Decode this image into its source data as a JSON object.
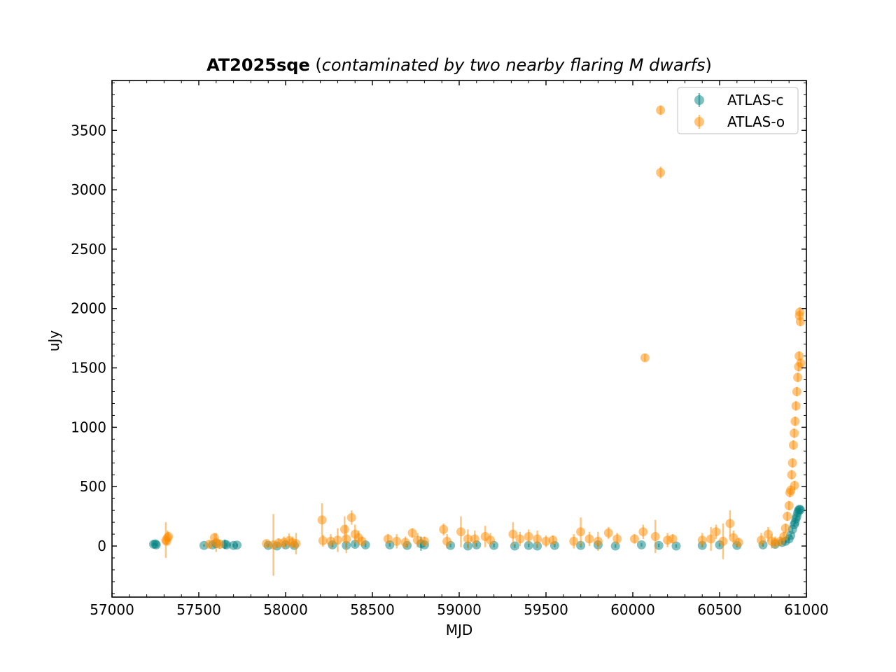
{
  "chart_data": {
    "type": "scatter",
    "title": "AT2025sqe",
    "subtitle": "contaminated by two nearby flaring M dwarfs",
    "xlabel": "MJD",
    "ylabel": "uJy",
    "xlim": [
      57000,
      61000
    ],
    "ylim": [
      -430,
      3920
    ],
    "xticks": [
      57000,
      57500,
      58000,
      58500,
      59000,
      59500,
      60000,
      60500,
      61000
    ],
    "yticks": [
      0,
      500,
      1000,
      1500,
      2000,
      2500,
      3000,
      3500
    ],
    "grid": false,
    "legend_position": "top-right",
    "series": [
      {
        "name": "ATLAS-c",
        "color": "#008080",
        "marker": "circle",
        "points": [
          [
            57240,
            15,
            10
          ],
          [
            57250,
            18,
            10
          ],
          [
            57255,
            10,
            10
          ],
          [
            57530,
            5,
            10
          ],
          [
            57580,
            10,
            12
          ],
          [
            57600,
            20,
            12
          ],
          [
            57650,
            15,
            40
          ],
          [
            57660,
            10,
            15
          ],
          [
            57700,
            5,
            12
          ],
          [
            57720,
            8,
            12
          ],
          [
            57900,
            5,
            15
          ],
          [
            57950,
            0,
            15
          ],
          [
            58000,
            10,
            15
          ],
          [
            58050,
            5,
            15
          ],
          [
            58270,
            10,
            20
          ],
          [
            58350,
            5,
            20
          ],
          [
            58400,
            15,
            20
          ],
          [
            58460,
            10,
            20
          ],
          [
            58600,
            10,
            15
          ],
          [
            58700,
            5,
            15
          ],
          [
            58780,
            20,
            60
          ],
          [
            58800,
            10,
            15
          ],
          [
            58950,
            5,
            15
          ],
          [
            59050,
            0,
            15
          ],
          [
            59100,
            10,
            15
          ],
          [
            59200,
            5,
            15
          ],
          [
            59320,
            0,
            15
          ],
          [
            59400,
            5,
            15
          ],
          [
            59450,
            0,
            15
          ],
          [
            59550,
            5,
            15
          ],
          [
            59700,
            5,
            15
          ],
          [
            59800,
            10,
            15
          ],
          [
            59900,
            0,
            15
          ],
          [
            60050,
            10,
            15
          ],
          [
            60150,
            5,
            15
          ],
          [
            60250,
            0,
            15
          ],
          [
            60400,
            5,
            15
          ],
          [
            60500,
            10,
            15
          ],
          [
            60600,
            5,
            15
          ],
          [
            60750,
            10,
            15
          ],
          [
            60820,
            15,
            15
          ],
          [
            60860,
            30,
            15
          ],
          [
            60880,
            40,
            15
          ],
          [
            60900,
            60,
            15
          ],
          [
            60910,
            90,
            15
          ],
          [
            60920,
            140,
            15
          ],
          [
            60930,
            180,
            15
          ],
          [
            60935,
            200,
            15
          ],
          [
            60940,
            230,
            15
          ],
          [
            60945,
            250,
            15
          ],
          [
            60950,
            280,
            15
          ],
          [
            60955,
            300,
            15
          ],
          [
            60960,
            310,
            15
          ],
          [
            60965,
            305,
            15
          ]
        ]
      },
      {
        "name": "ATLAS-o",
        "color": "#ff8c00",
        "marker": "circle",
        "points": [
          [
            57310,
            50,
            150
          ],
          [
            57320,
            70,
            60
          ],
          [
            57315,
            40,
            30
          ],
          [
            57325,
            80,
            40
          ],
          [
            57560,
            15,
            30
          ],
          [
            57590,
            70,
            40
          ],
          [
            57600,
            30,
            80
          ],
          [
            57620,
            15,
            40
          ],
          [
            57890,
            20,
            30
          ],
          [
            57930,
            10,
            260
          ],
          [
            57960,
            25,
            40
          ],
          [
            57990,
            30,
            50
          ],
          [
            58020,
            45,
            60
          ],
          [
            58040,
            30,
            50
          ],
          [
            58060,
            20,
            90
          ],
          [
            58210,
            220,
            140
          ],
          [
            58215,
            45,
            50
          ],
          [
            58260,
            40,
            60
          ],
          [
            58300,
            50,
            100
          ],
          [
            58340,
            140,
            110
          ],
          [
            58350,
            60,
            120
          ],
          [
            58380,
            240,
            60
          ],
          [
            58400,
            100,
            80
          ],
          [
            58420,
            70,
            60
          ],
          [
            58440,
            40,
            40
          ],
          [
            58590,
            60,
            40
          ],
          [
            58640,
            40,
            60
          ],
          [
            58690,
            30,
            50
          ],
          [
            58730,
            110,
            40
          ],
          [
            58760,
            50,
            60
          ],
          [
            58800,
            40,
            40
          ],
          [
            58910,
            140,
            50
          ],
          [
            58930,
            40,
            60
          ],
          [
            59010,
            120,
            130
          ],
          [
            59050,
            60,
            80
          ],
          [
            59090,
            60,
            70
          ],
          [
            59150,
            80,
            90
          ],
          [
            59180,
            50,
            60
          ],
          [
            59310,
            100,
            100
          ],
          [
            59350,
            60,
            60
          ],
          [
            59400,
            80,
            60
          ],
          [
            59450,
            60,
            70
          ],
          [
            59500,
            40,
            50
          ],
          [
            59540,
            50,
            40
          ],
          [
            59660,
            40,
            60
          ],
          [
            59700,
            120,
            120
          ],
          [
            59750,
            60,
            60
          ],
          [
            59800,
            40,
            80
          ],
          [
            59860,
            110,
            50
          ],
          [
            59910,
            60,
            50
          ],
          [
            60010,
            60,
            40
          ],
          [
            60060,
            120,
            60
          ],
          [
            60070,
            1585,
            30
          ],
          [
            60130,
            80,
            140
          ],
          [
            60160,
            3670,
            40
          ],
          [
            60160,
            3145,
            50
          ],
          [
            60200,
            50,
            60
          ],
          [
            60230,
            60,
            40
          ],
          [
            60400,
            50,
            60
          ],
          [
            60450,
            60,
            100
          ],
          [
            60480,
            120,
            60
          ],
          [
            60520,
            40,
            150
          ],
          [
            60560,
            190,
            110
          ],
          [
            60580,
            70,
            60
          ],
          [
            60610,
            30,
            40
          ],
          [
            60740,
            50,
            60
          ],
          [
            60780,
            100,
            60
          ],
          [
            60800,
            40,
            60
          ],
          [
            60820,
            30,
            50
          ],
          [
            60850,
            40,
            40
          ],
          [
            60870,
            80,
            40
          ],
          [
            60880,
            150,
            40
          ],
          [
            60890,
            250,
            40
          ],
          [
            60900,
            340,
            40
          ],
          [
            60905,
            450,
            40
          ],
          [
            60910,
            470,
            40
          ],
          [
            60915,
            600,
            40
          ],
          [
            60920,
            700,
            40
          ],
          [
            60925,
            850,
            40
          ],
          [
            60930,
            950,
            40
          ],
          [
            60932,
            510,
            40
          ],
          [
            60935,
            1050,
            40
          ],
          [
            60940,
            1180,
            40
          ],
          [
            60945,
            1300,
            40
          ],
          [
            60950,
            1420,
            40
          ],
          [
            60955,
            1510,
            40
          ],
          [
            60958,
            1600,
            40
          ],
          [
            60960,
            1940,
            40
          ],
          [
            60962,
            1970,
            40
          ],
          [
            60965,
            1890,
            40
          ],
          [
            60968,
            1540,
            40
          ]
        ]
      }
    ]
  }
}
